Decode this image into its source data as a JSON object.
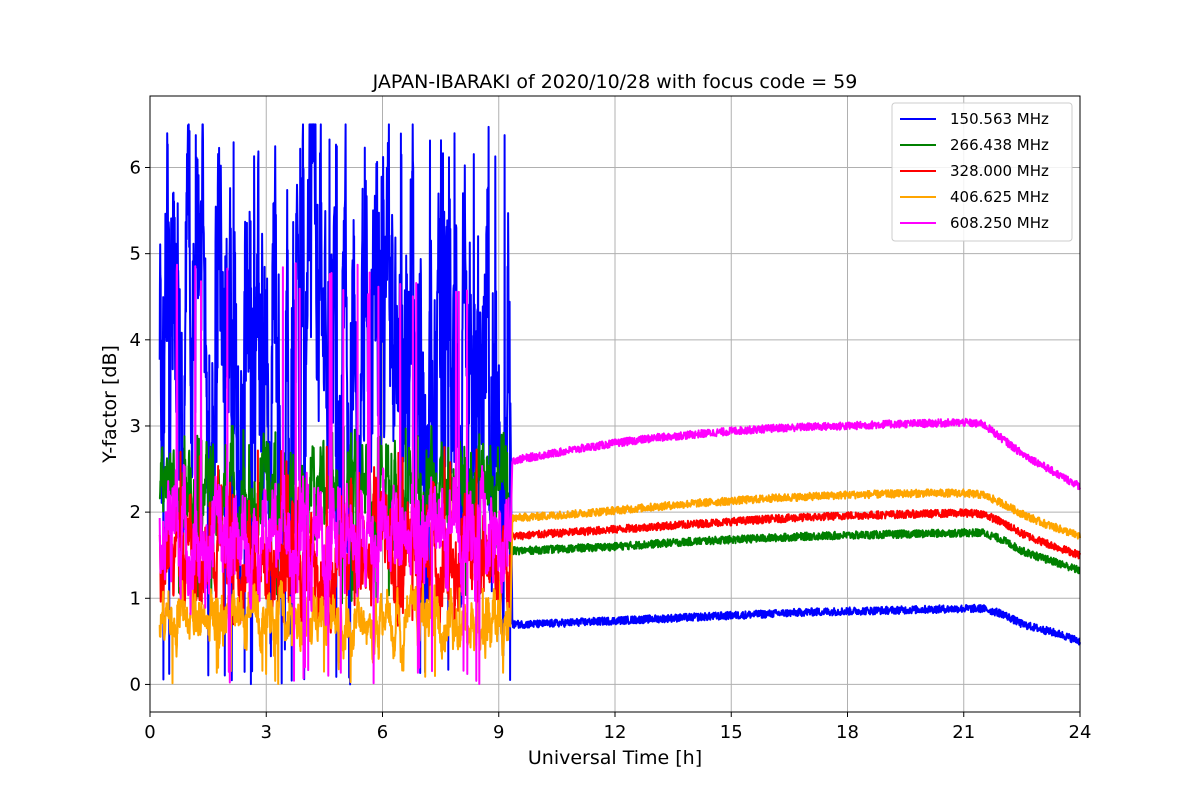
{
  "chart_data": {
    "type": "line",
    "title": "JAPAN-IBARAKI of 2020/10/28 with focus code = 59",
    "xlabel": "Universal Time [h]",
    "ylabel": "Y-factor [dB]",
    "xlim": [
      0,
      24
    ],
    "ylim": [
      -0.32,
      6.83
    ],
    "xticks": [
      0,
      3,
      6,
      9,
      12,
      15,
      18,
      21,
      24
    ],
    "yticks": [
      0,
      1,
      2,
      3,
      4,
      5,
      6
    ],
    "grid": true,
    "legend_position": "top-right",
    "series": [
      {
        "name": "150.563 MHz",
        "color": "#0000ff",
        "noisy_until": 9.3,
        "noisy_base": 3.7,
        "noisy_amplitude": 1.3,
        "noisy_floor": 0.0,
        "noisy_peak": 6.5,
        "x": [
          9.35,
          10,
          11,
          12,
          13,
          14,
          15,
          16,
          17,
          18,
          19,
          20,
          21,
          21.5,
          22,
          22.5,
          23,
          23.5,
          24
        ],
        "y": [
          0.7,
          0.7,
          0.72,
          0.74,
          0.76,
          0.78,
          0.8,
          0.82,
          0.84,
          0.85,
          0.86,
          0.87,
          0.88,
          0.88,
          0.82,
          0.7,
          0.64,
          0.58,
          0.5
        ]
      },
      {
        "name": "266.438 MHz",
        "color": "#008000",
        "noisy_until": 9.3,
        "noisy_base": 2.2,
        "noisy_amplitude": 0.35,
        "noisy_floor": 0.9,
        "noisy_peak": 3.0,
        "x": [
          9.35,
          10,
          11,
          12,
          13,
          14,
          15,
          16,
          17,
          18,
          19,
          20,
          21,
          21.5,
          22,
          22.5,
          23,
          23.5,
          24
        ],
        "y": [
          1.55,
          1.56,
          1.58,
          1.6,
          1.63,
          1.66,
          1.68,
          1.7,
          1.72,
          1.73,
          1.74,
          1.75,
          1.76,
          1.76,
          1.68,
          1.55,
          1.47,
          1.4,
          1.32
        ]
      },
      {
        "name": "328.000 MHz",
        "color": "#ff0000",
        "noisy_until": 9.3,
        "noisy_base": 1.5,
        "noisy_amplitude": 0.35,
        "noisy_floor": 0.6,
        "noisy_peak": 2.8,
        "x": [
          9.35,
          10,
          11,
          12,
          13,
          14,
          15,
          16,
          17,
          18,
          19,
          20,
          21,
          21.5,
          22,
          22.5,
          23,
          23.5,
          24
        ],
        "y": [
          1.72,
          1.74,
          1.77,
          1.8,
          1.83,
          1.86,
          1.89,
          1.92,
          1.94,
          1.96,
          1.97,
          1.98,
          1.99,
          1.98,
          1.88,
          1.75,
          1.66,
          1.58,
          1.5
        ]
      },
      {
        "name": "406.625 MHz",
        "color": "#ffa500",
        "noisy_until": 9.3,
        "noisy_base": 0.75,
        "noisy_amplitude": 0.2,
        "noisy_floor": 0.0,
        "noisy_peak": 1.2,
        "x": [
          9.35,
          10,
          11,
          12,
          13,
          14,
          15,
          16,
          17,
          18,
          19,
          20,
          21,
          21.5,
          22,
          22.5,
          23,
          23.5,
          24
        ],
        "y": [
          1.93,
          1.95,
          1.98,
          2.02,
          2.06,
          2.1,
          2.13,
          2.16,
          2.18,
          2.2,
          2.21,
          2.22,
          2.22,
          2.2,
          2.1,
          1.98,
          1.88,
          1.8,
          1.72
        ]
      },
      {
        "name": "608.250 MHz",
        "color": "#ff00ff",
        "noisy_until": 9.3,
        "noisy_base": 1.7,
        "noisy_amplitude": 0.35,
        "noisy_floor": 0.0,
        "noisy_peak": 4.9,
        "x": [
          9.35,
          10,
          11,
          12,
          13,
          14,
          15,
          16,
          17,
          18,
          19,
          20,
          21,
          21.5,
          22,
          22.5,
          23,
          23.5,
          24
        ],
        "y": [
          2.6,
          2.65,
          2.73,
          2.8,
          2.86,
          2.9,
          2.94,
          2.97,
          2.99,
          3.0,
          3.02,
          3.03,
          3.04,
          3.02,
          2.85,
          2.68,
          2.55,
          2.42,
          2.3
        ]
      }
    ]
  }
}
